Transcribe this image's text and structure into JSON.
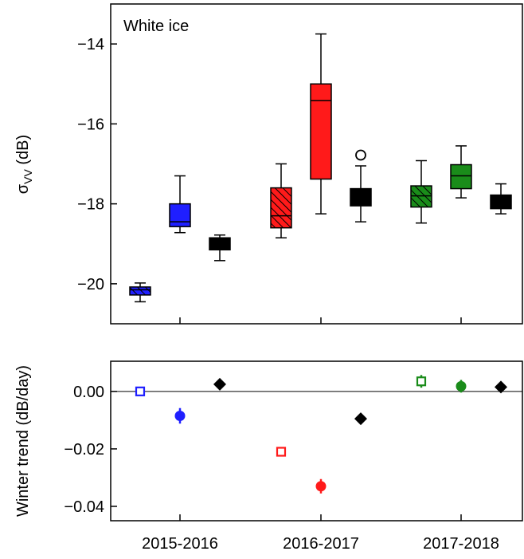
{
  "chart_data": [
    {
      "type": "box",
      "annotation": "White ice",
      "ylabel_main": "σ",
      "ylabel_sub": "VV",
      "ylabel_unit": " (dB)",
      "ylim": [
        -21,
        -13.0
      ],
      "yticks": [
        -20,
        -18,
        -16,
        -14
      ],
      "ytick_labels": [
        "−20",
        "−18",
        "−16",
        "−14"
      ],
      "categories": [
        "2015-2016",
        "2016-2017",
        "2017-2018"
      ],
      "boxes": [
        {
          "group": 0,
          "offset": -1,
          "color": "#1f1fff",
          "hatch": true,
          "whisker_low": -20.45,
          "q1": -20.28,
          "median": -20.15,
          "q3": -20.08,
          "whisker_high": -19.98,
          "outliers": []
        },
        {
          "group": 0,
          "offset": 0,
          "color": "#1f1fff",
          "hatch": false,
          "whisker_low": -18.72,
          "q1": -18.57,
          "median": -18.45,
          "q3": -18.0,
          "whisker_high": -17.3,
          "outliers": []
        },
        {
          "group": 0,
          "offset": 1,
          "color": "#000000",
          "hatch": false,
          "whisker_low": -19.42,
          "q1": -19.15,
          "median": -19.05,
          "q3": -18.85,
          "whisker_high": -18.78,
          "outliers": []
        },
        {
          "group": 1,
          "offset": -1,
          "color": "#ff1a1a",
          "hatch": true,
          "whisker_low": -18.85,
          "q1": -18.6,
          "median": -18.3,
          "q3": -17.6,
          "whisker_high": -17.0,
          "outliers": []
        },
        {
          "group": 1,
          "offset": 0,
          "color": "#ff1a1a",
          "hatch": false,
          "whisker_low": -18.25,
          "q1": -17.38,
          "median": -15.42,
          "q3": -15.0,
          "whisker_high": -13.75,
          "outliers": []
        },
        {
          "group": 1,
          "offset": 1,
          "color": "#000000",
          "hatch": false,
          "whisker_low": -18.45,
          "q1": -18.05,
          "median": -17.9,
          "q3": -17.62,
          "whisker_high": -17.05,
          "outliers": [
            -16.78
          ]
        },
        {
          "group": 2,
          "offset": -1,
          "color": "#1a8c1a",
          "hatch": true,
          "whisker_low": -18.48,
          "q1": -18.08,
          "median": -17.8,
          "q3": -17.55,
          "whisker_high": -16.92,
          "outliers": []
        },
        {
          "group": 2,
          "offset": 0,
          "color": "#1a8c1a",
          "hatch": false,
          "whisker_low": -17.85,
          "q1": -17.62,
          "median": -17.3,
          "q3": -17.02,
          "whisker_high": -16.55,
          "outliers": []
        },
        {
          "group": 2,
          "offset": 1,
          "color": "#000000",
          "hatch": false,
          "whisker_low": -18.25,
          "q1": -18.12,
          "median": -17.95,
          "q3": -17.78,
          "whisker_high": -17.5,
          "outliers": []
        }
      ]
    },
    {
      "type": "scatter",
      "ylabel": "Winter trend (dB/day)",
      "ylim": [
        -0.045,
        0.0105
      ],
      "yticks": [
        0.0,
        -0.02,
        -0.04
      ],
      "ytick_labels": [
        "0.00",
        "−0.02",
        "−0.04"
      ],
      "categories": [
        "2015-2016",
        "2016-2017",
        "2017-2018"
      ],
      "zero_line": true,
      "points": [
        {
          "group": 0,
          "offset": -1,
          "marker": "square-open",
          "color": "#1f1fff",
          "y": 0.0,
          "err": 0.0008
        },
        {
          "group": 0,
          "offset": 0,
          "marker": "circle-filled",
          "color": "#1f1fff",
          "y": -0.0085,
          "err": 0.0027
        },
        {
          "group": 0,
          "offset": 1,
          "marker": "diamond-filled",
          "color": "#000000",
          "y": 0.0025,
          "err": 0.0004
        },
        {
          "group": 1,
          "offset": -1,
          "marker": "square-open",
          "color": "#ff1a1a",
          "y": -0.021,
          "err": 0.0015
        },
        {
          "group": 1,
          "offset": 0,
          "marker": "circle-filled",
          "color": "#ff1a1a",
          "y": -0.033,
          "err": 0.0025
        },
        {
          "group": 1,
          "offset": 1,
          "marker": "diamond-filled",
          "color": "#000000",
          "y": -0.0095,
          "err": 0.0004
        },
        {
          "group": 2,
          "offset": -1,
          "marker": "square-open",
          "color": "#1a8c1a",
          "y": 0.0035,
          "err": 0.0022
        },
        {
          "group": 2,
          "offset": 0,
          "marker": "circle-filled",
          "color": "#1a8c1a",
          "y": 0.0018,
          "err": 0.0022
        },
        {
          "group": 2,
          "offset": 1,
          "marker": "diamond-filled",
          "color": "#000000",
          "y": 0.0015,
          "err": 0.0004
        }
      ]
    }
  ]
}
